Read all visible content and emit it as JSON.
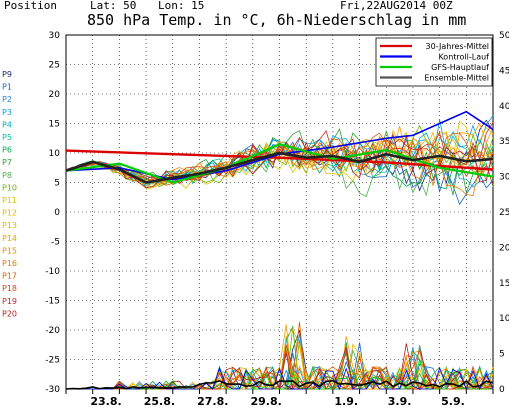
{
  "header": {
    "position_label": "Position",
    "lat_label": "Lat: 50",
    "lon_label": "Lon: 15",
    "run_date": "Fri,22AUG2014 00Z",
    "title": "850 hPa Temp. in °C, 6h-Niederschlag in mm"
  },
  "colors": {
    "climate": "#dd0000",
    "control": "#0000ee",
    "gfs": "#00cc00",
    "ensemble_mean": "#222222"
  },
  "members": [
    {
      "label": "P9",
      "color": "#1a237e"
    },
    {
      "label": "P1",
      "color": "#1565c0"
    },
    {
      "label": "P2",
      "color": "#1e88e5"
    },
    {
      "label": "P3",
      "color": "#039be5"
    },
    {
      "label": "P4",
      "color": "#00acc1"
    },
    {
      "label": "P5",
      "color": "#00bfa5"
    },
    {
      "label": "P6",
      "color": "#00a65a"
    },
    {
      "label": "P7",
      "color": "#2e9e2e"
    },
    {
      "label": "P8",
      "color": "#4caf50"
    },
    {
      "label": "P10",
      "color": "#66bb00"
    },
    {
      "label": "P11",
      "color": "#e0c000"
    },
    {
      "label": "P12",
      "color": "#e6b800"
    },
    {
      "label": "P13",
      "color": "#f0b000"
    },
    {
      "label": "P14",
      "color": "#f5a000"
    },
    {
      "label": "P15",
      "color": "#f08c00"
    },
    {
      "label": "P16",
      "color": "#e87800"
    },
    {
      "label": "P17",
      "color": "#e06000"
    },
    {
      "label": "P18",
      "color": "#d84315"
    },
    {
      "label": "P19",
      "color": "#c62828"
    },
    {
      "label": "P20",
      "color": "#b71c1c"
    }
  ],
  "chart_data": {
    "type": "line",
    "x_range": [
      "2014-08-22T00:00",
      "2014-09-07T00:00"
    ],
    "x_ticks": [
      {
        "label": "23.8.",
        "date": "2014-08-23"
      },
      {
        "label": "25.8.",
        "date": "2014-08-25"
      },
      {
        "label": "27.8.",
        "date": "2014-08-27"
      },
      {
        "label": "29.8.",
        "date": "2014-08-29"
      },
      {
        "label": "1.9.",
        "date": "2014-09-01"
      },
      {
        "label": "3.9.",
        "date": "2014-09-03"
      },
      {
        "label": "5.9.",
        "date": "2014-09-05"
      }
    ],
    "y_left": {
      "min": -30,
      "max": 30,
      "ticks": [
        30,
        25,
        20,
        15,
        10,
        5,
        0,
        -5,
        -10,
        -15,
        -20,
        -25,
        -30
      ]
    },
    "y_right": {
      "min": 0,
      "max": 50,
      "ticks": [
        50,
        45,
        40,
        35,
        30,
        25,
        20,
        15,
        10,
        5,
        0
      ]
    },
    "legend": [
      {
        "name": "30-Jahres-Mittel",
        "color": "#dd0000"
      },
      {
        "name": "Kontroll-Lauf",
        "color": "#0000ee"
      },
      {
        "name": "GFS-Hauptlauf",
        "color": "#00cc00"
      },
      {
        "name": "Ensemble-Mittel",
        "color": "#555555"
      }
    ],
    "legend_placement": "top-right",
    "grid": true,
    "climate_temp": {
      "x": [
        "2014-08-22",
        "2014-08-26",
        "2014-08-30",
        "2014-09-03",
        "2014-09-07"
      ],
      "y": [
        10.4,
        9.8,
        9.2,
        8.4,
        7.2
      ]
    },
    "ensemble_mean_temp": {
      "x": [
        "2014-08-22",
        "2014-08-23",
        "2014-08-24",
        "2014-08-25",
        "2014-08-26",
        "2014-08-27",
        "2014-08-28",
        "2014-08-29",
        "2014-08-30",
        "2014-08-31",
        "2014-09-01",
        "2014-09-02",
        "2014-09-03",
        "2014-09-04",
        "2014-09-05",
        "2014-09-06",
        "2014-09-07"
      ],
      "y": [
        7,
        8.5,
        7.2,
        5.0,
        5.8,
        6.5,
        7.5,
        8.8,
        10.0,
        9.2,
        9.5,
        8.5,
        9.8,
        8.8,
        9.5,
        8.6,
        9.0
      ]
    },
    "control_temp": {
      "x": [
        "2014-08-22",
        "2014-08-24",
        "2014-08-26",
        "2014-08-28",
        "2014-08-30",
        "2014-09-01",
        "2014-09-03",
        "2014-09-04",
        "2014-09-05",
        "2014-09-06",
        "2014-09-07"
      ],
      "y": [
        7,
        7.5,
        5.5,
        7.0,
        9.8,
        11.0,
        12.5,
        13.0,
        15.0,
        17.0,
        14.0
      ]
    },
    "gfs_temp": {
      "x": [
        "2014-08-22",
        "2014-08-24",
        "2014-08-26",
        "2014-08-28",
        "2014-08-30",
        "2014-09-01",
        "2014-09-03",
        "2014-09-05",
        "2014-09-07"
      ],
      "y": [
        7,
        8.2,
        5.0,
        7.5,
        11.5,
        9.0,
        10.5,
        7.5,
        6.0
      ]
    },
    "precip_peaks": [
      {
        "date": "2014-08-30T12:00",
        "mm": 9.5
      },
      {
        "date": "2014-09-01T18:00",
        "mm": 7.5
      },
      {
        "date": "2014-09-04T00:00",
        "mm": 6.5
      }
    ]
  }
}
